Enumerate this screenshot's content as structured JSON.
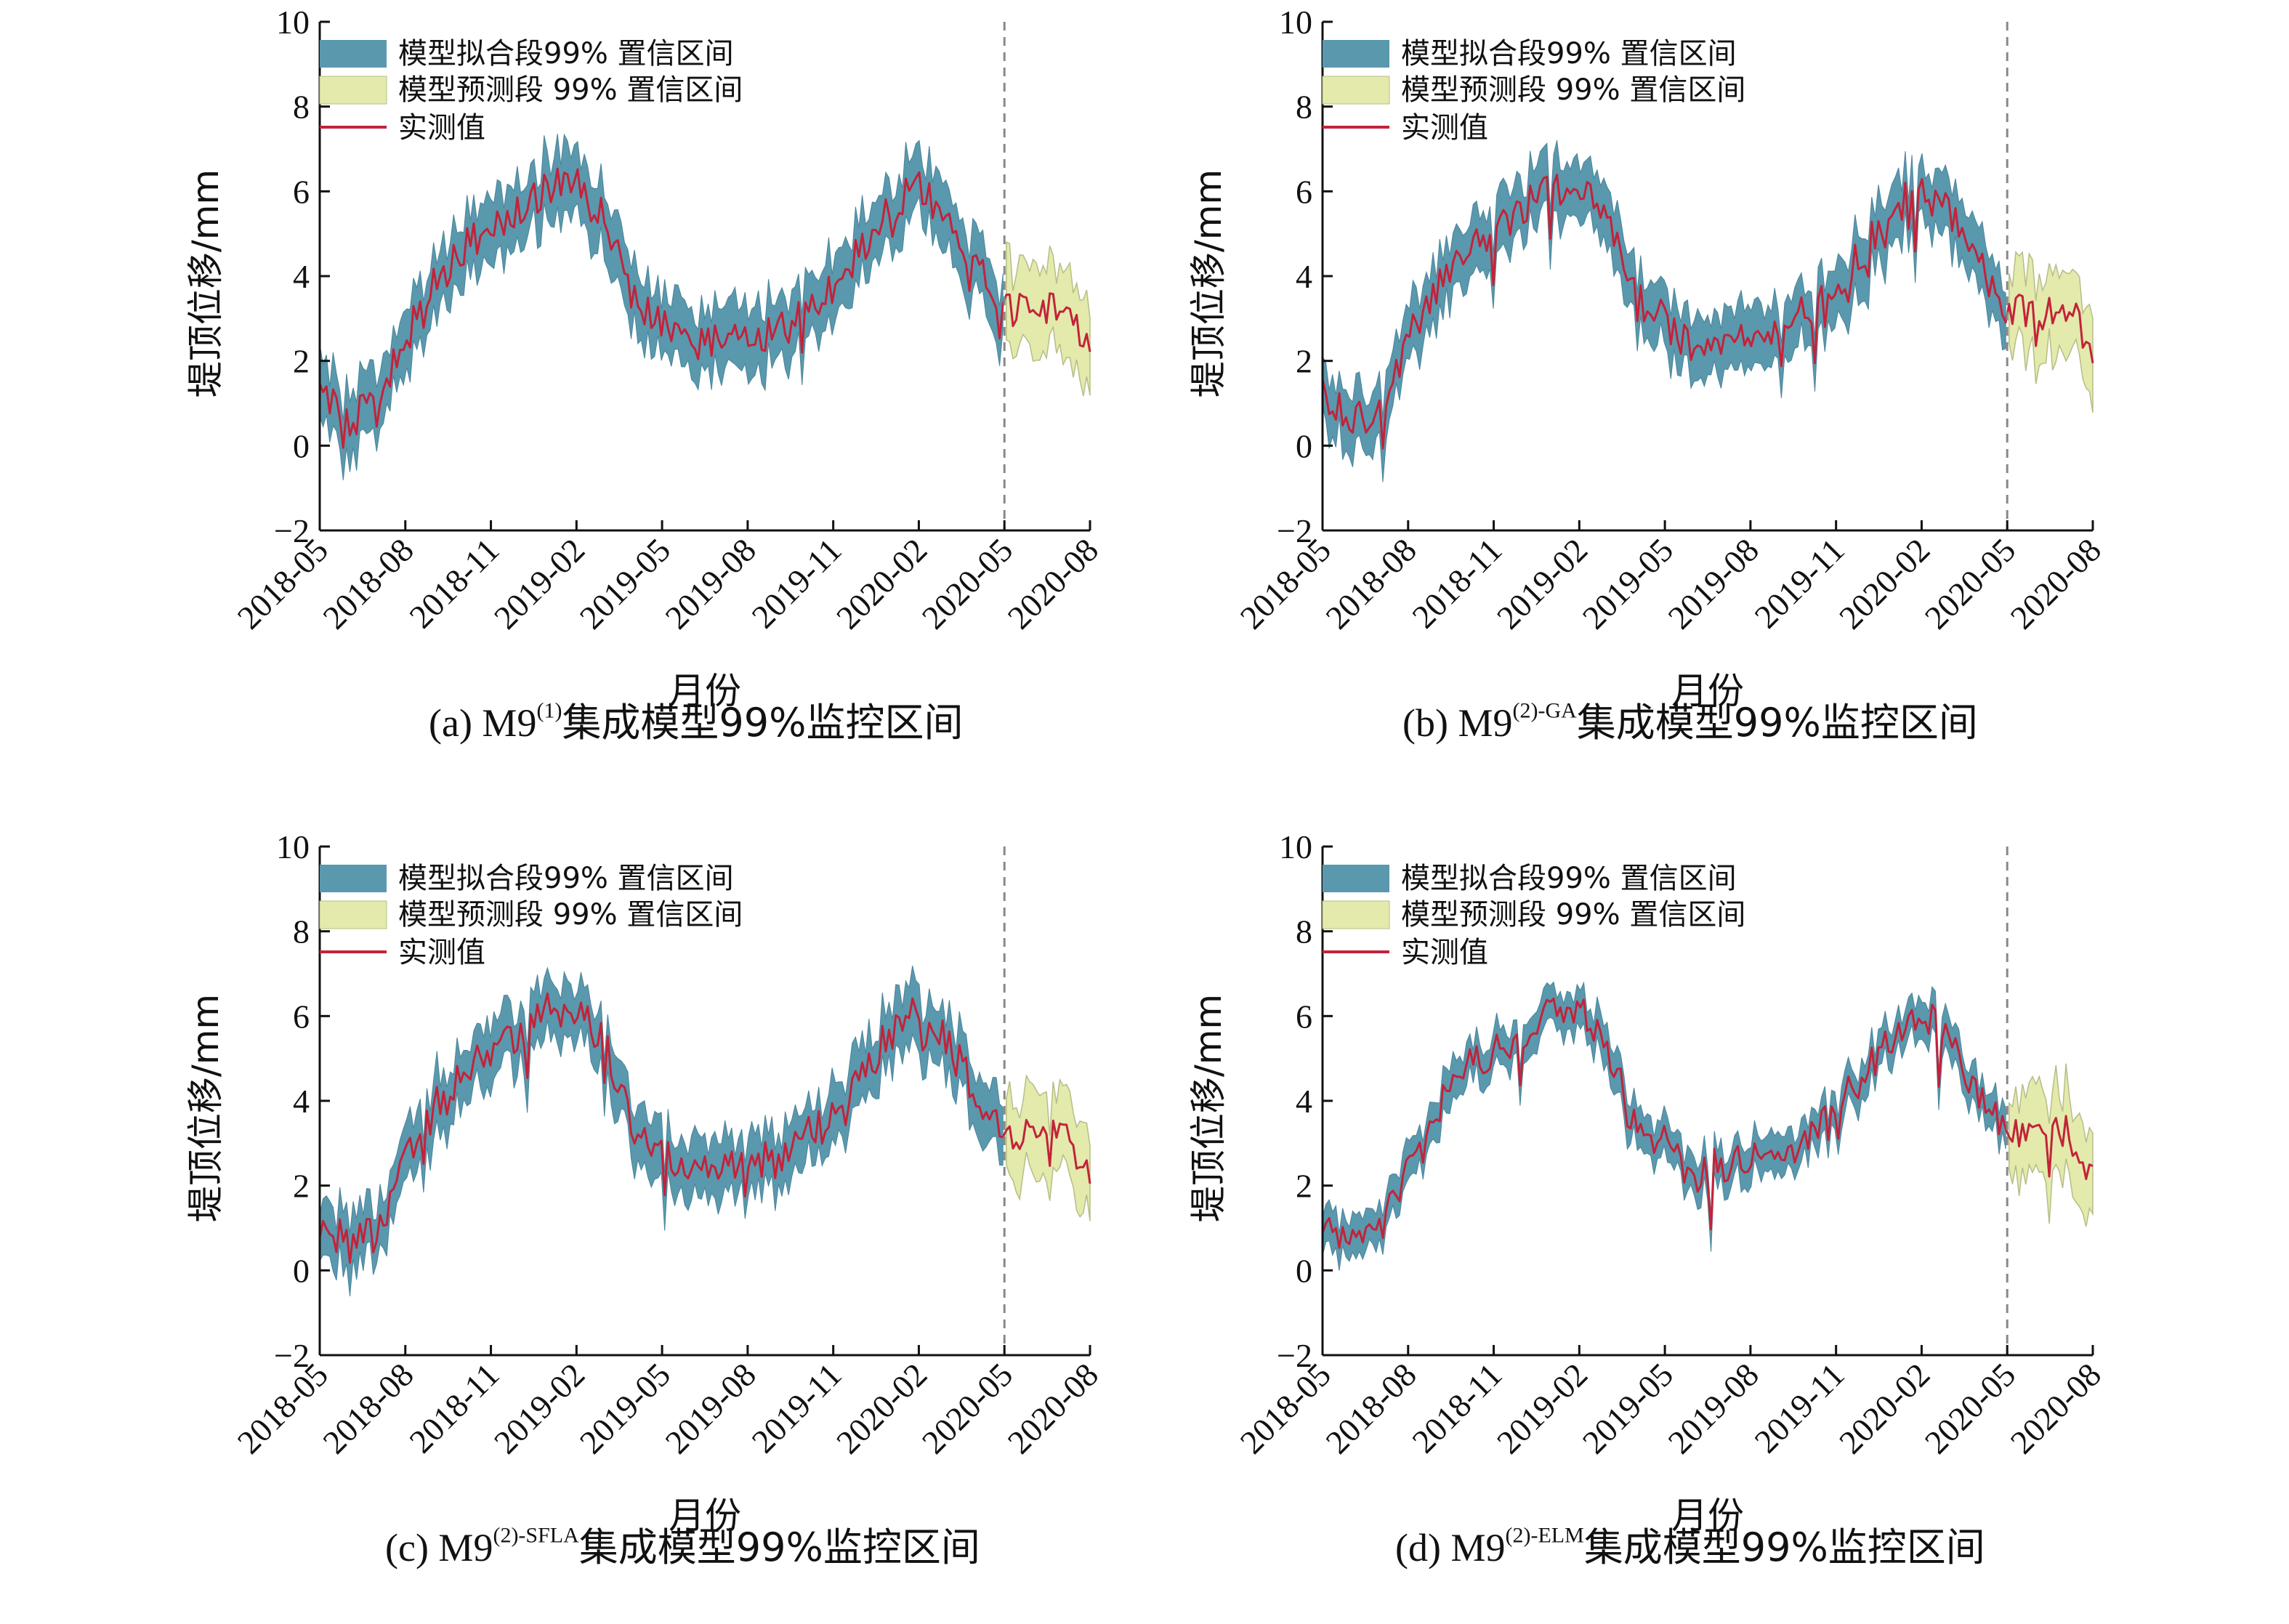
{
  "legend": {
    "fit_band": "模型拟合段99% 置信区间",
    "pred_band": "模型预测段 99% 置信区间",
    "observed": "实测值"
  },
  "colors": {
    "fit_band": "#5a98ae",
    "pred_band": "#e3eaab",
    "observed": "#c2233a",
    "divider": "#888888"
  },
  "chart_data": [
    {
      "type": "area",
      "panel": "a",
      "caption": {
        "prefix": "(a) M9",
        "sup": "(1)",
        "suffix": "集成模型99%监控区间"
      },
      "xlabel": "月份",
      "ylabel": "堤顶位移/mm",
      "ylim": [
        -2,
        10
      ],
      "yticks": [
        -2,
        0,
        2,
        4,
        6,
        8,
        10
      ],
      "xlim": [
        "2018-05",
        "2020-08"
      ],
      "xticks": [
        "2018-05",
        "2018-08",
        "2018-11",
        "2019-02",
        "2019-05",
        "2019-08",
        "2019-11",
        "2020-02",
        "2020-05",
        "2020-08"
      ],
      "split": "2020-05",
      "legend_position": "top-left",
      "band_halfwidth_fit": 0.75,
      "band_halfwidth_pred": 1.0,
      "series": [
        {
          "name": "实测值",
          "x": [
            "2018-05",
            "2018-06",
            "2018-07",
            "2018-08",
            "2018-09",
            "2018-10",
            "2018-11",
            "2018-12",
            "2019-01",
            "2019-02",
            "2019-03",
            "2019-04",
            "2019-05",
            "2019-06",
            "2019-07",
            "2019-08",
            "2019-09",
            "2019-10",
            "2019-11",
            "2019-12",
            "2020-01",
            "2020-02",
            "2020-03",
            "2020-04",
            "2020-05",
            "2020-06",
            "2020-07",
            "2020-08"
          ],
          "values": [
            1.2,
            0.6,
            0.9,
            2.5,
            3.8,
            4.7,
            5.1,
            5.6,
            6.1,
            6.1,
            5.3,
            3.4,
            3.0,
            2.2,
            2.5,
            2.6,
            2.6,
            3.2,
            3.8,
            4.6,
            5.6,
            6.1,
            5.4,
            4.2,
            3.3,
            3.1,
            3.4,
            2.3
          ]
        }
      ]
    },
    {
      "type": "area",
      "panel": "b",
      "caption": {
        "prefix": "(b) M9",
        "sup": "(2)-GA",
        "suffix": "集成模型99%监控区间"
      },
      "xlabel": "月份",
      "ylabel": "堤顶位移/mm",
      "ylim": [
        -2,
        10
      ],
      "yticks": [
        -2,
        0,
        2,
        4,
        6,
        8,
        10
      ],
      "xlim": [
        "2018-05",
        "2020-08"
      ],
      "xticks": [
        "2018-05",
        "2018-08",
        "2018-11",
        "2019-02",
        "2019-05",
        "2019-08",
        "2019-11",
        "2020-02",
        "2020-05",
        "2020-08"
      ],
      "split": "2020-05",
      "legend_position": "top-left",
      "band_halfwidth_fit": 0.7,
      "band_halfwidth_pred": 0.95,
      "series": [
        {
          "name": "实测值",
          "x": [
            "2018-05",
            "2018-06",
            "2018-07",
            "2018-08",
            "2018-09",
            "2018-10",
            "2018-11",
            "2018-12",
            "2019-01",
            "2019-02",
            "2019-03",
            "2019-04",
            "2019-05",
            "2019-06",
            "2019-07",
            "2019-08",
            "2019-09",
            "2019-10",
            "2019-11",
            "2019-12",
            "2020-01",
            "2020-02",
            "2020-03",
            "2020-04",
            "2020-05",
            "2020-06",
            "2020-07",
            "2020-08"
          ],
          "values": [
            1.2,
            0.6,
            0.9,
            2.5,
            3.8,
            4.7,
            5.1,
            5.6,
            6.1,
            6.1,
            5.3,
            3.4,
            3.0,
            2.2,
            2.5,
            2.6,
            2.6,
            3.2,
            3.8,
            4.6,
            5.6,
            6.1,
            5.4,
            4.2,
            3.3,
            3.1,
            3.4,
            2.3
          ]
        }
      ]
    },
    {
      "type": "area",
      "panel": "c",
      "caption": {
        "prefix": "(c) M9",
        "sup": "(2)-SFLA",
        "suffix": "集成模型99%监控区间"
      },
      "xlabel": "月份",
      "ylabel": "堤顶位移/mm",
      "ylim": [
        -2,
        10
      ],
      "yticks": [
        -2,
        0,
        2,
        4,
        6,
        8,
        10
      ],
      "xlim": [
        "2018-05",
        "2020-08"
      ],
      "xticks": [
        "2018-05",
        "2018-08",
        "2018-11",
        "2019-02",
        "2019-05",
        "2019-08",
        "2019-11",
        "2020-02",
        "2020-05",
        "2020-08"
      ],
      "split": "2020-05",
      "legend_position": "top-left",
      "band_halfwidth_fit": 0.68,
      "band_halfwidth_pred": 0.95,
      "series": [
        {
          "name": "实测值",
          "x": [
            "2018-05",
            "2018-06",
            "2018-07",
            "2018-08",
            "2018-09",
            "2018-10",
            "2018-11",
            "2018-12",
            "2019-01",
            "2019-02",
            "2019-03",
            "2019-04",
            "2019-05",
            "2019-06",
            "2019-07",
            "2019-08",
            "2019-09",
            "2019-10",
            "2019-11",
            "2019-12",
            "2020-01",
            "2020-02",
            "2020-03",
            "2020-04",
            "2020-05",
            "2020-06",
            "2020-07",
            "2020-08"
          ],
          "values": [
            1.2,
            0.6,
            0.9,
            2.5,
            3.8,
            4.7,
            5.1,
            5.6,
            6.1,
            6.1,
            5.3,
            3.4,
            3.0,
            2.2,
            2.5,
            2.6,
            2.6,
            3.2,
            3.8,
            4.6,
            5.6,
            6.1,
            5.4,
            4.2,
            3.3,
            3.1,
            3.4,
            2.3
          ]
        }
      ]
    },
    {
      "type": "area",
      "panel": "d",
      "caption": {
        "prefix": "(d) M9",
        "sup": "(2)-ELM",
        "suffix": "集成模型99%监控区间"
      },
      "xlabel": "月份",
      "ylabel": "堤顶位移/mm",
      "ylim": [
        -2,
        10
      ],
      "yticks": [
        -2,
        0,
        2,
        4,
        6,
        8,
        10
      ],
      "xlim": [
        "2018-05",
        "2020-08"
      ],
      "xticks": [
        "2018-05",
        "2018-08",
        "2018-11",
        "2019-02",
        "2019-05",
        "2019-08",
        "2019-11",
        "2020-02",
        "2020-05",
        "2020-08"
      ],
      "split": "2020-05",
      "legend_position": "top-left",
      "band_halfwidth_fit": 0.45,
      "band_halfwidth_pred": 1.0,
      "series": [
        {
          "name": "实测值",
          "x": [
            "2018-05",
            "2018-06",
            "2018-07",
            "2018-08",
            "2018-09",
            "2018-10",
            "2018-11",
            "2018-12",
            "2019-01",
            "2019-02",
            "2019-03",
            "2019-04",
            "2019-05",
            "2019-06",
            "2019-07",
            "2019-08",
            "2019-09",
            "2019-10",
            "2019-11",
            "2019-12",
            "2020-01",
            "2020-02",
            "2020-03",
            "2020-04",
            "2020-05",
            "2020-06",
            "2020-07",
            "2020-08"
          ],
          "values": [
            1.2,
            0.6,
            0.9,
            2.5,
            3.8,
            4.7,
            5.1,
            5.6,
            6.1,
            6.1,
            5.3,
            3.4,
            3.0,
            2.2,
            2.5,
            2.6,
            2.6,
            3.2,
            3.8,
            4.6,
            5.6,
            6.1,
            5.4,
            4.2,
            3.3,
            3.1,
            3.4,
            2.3
          ]
        }
      ]
    }
  ]
}
